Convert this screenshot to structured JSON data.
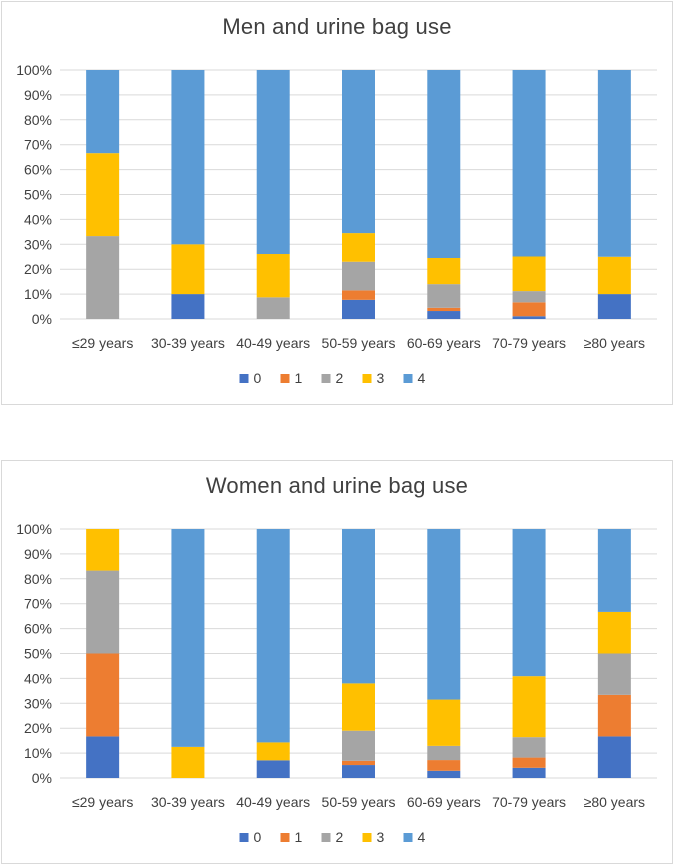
{
  "colors": {
    "0": "#4472C4",
    "1": "#ED7D31",
    "2": "#A5A5A5",
    "3": "#FFC000",
    "4": "#5B9BD5"
  },
  "chart_data": [
    {
      "type": "bar",
      "stacked": true,
      "title": "Men and urine bag use",
      "categories": [
        "≤29 years",
        "30-39 years",
        "40-49 years",
        "50-59 years",
        "60-69 years",
        "70-79 years",
        "≥80 years"
      ],
      "yticks": [
        "0%",
        "10%",
        "20%",
        "30%",
        "40%",
        "50%",
        "60%",
        "70%",
        "80%",
        "90%",
        "100%"
      ],
      "ylim": [
        0,
        100
      ],
      "legend_position": "bottom",
      "series": [
        {
          "name": "0",
          "values": [
            0,
            10,
            0,
            7.7,
            3.2,
            1.1,
            10
          ]
        },
        {
          "name": "1",
          "values": [
            0,
            0,
            0,
            3.8,
            1.3,
            5.6,
            0
          ]
        },
        {
          "name": "2",
          "values": [
            33.3,
            0,
            8.7,
            11.5,
            9.5,
            4.5,
            0
          ]
        },
        {
          "name": "3",
          "values": [
            33.3,
            20,
            17.4,
            11.5,
            10.5,
            13.9,
            15
          ]
        },
        {
          "name": "4",
          "values": [
            33.4,
            70,
            73.9,
            65.5,
            75.5,
            74.9,
            75
          ]
        }
      ]
    },
    {
      "type": "bar",
      "stacked": true,
      "title": "Women and urine bag use",
      "categories": [
        "≤29 years",
        "30-39 years",
        "40-49 years",
        "50-59 years",
        "60-69 years",
        "70-79 years",
        "≥80 years"
      ],
      "yticks": [
        "0%",
        "10%",
        "20%",
        "30%",
        "40%",
        "50%",
        "60%",
        "70%",
        "80%",
        "90%",
        "100%"
      ],
      "ylim": [
        0,
        100
      ],
      "legend_position": "bottom",
      "series": [
        {
          "name": "0",
          "values": [
            16.7,
            0,
            7.1,
            5.2,
            2.9,
            4.1,
            16.7
          ]
        },
        {
          "name": "1",
          "values": [
            33.3,
            0,
            0,
            1.7,
            4.3,
            4.1,
            16.7
          ]
        },
        {
          "name": "2",
          "values": [
            33.3,
            0,
            0,
            12.1,
            5.7,
            8.2,
            16.6
          ]
        },
        {
          "name": "3",
          "values": [
            16.7,
            12.5,
            7.2,
            19,
            18.6,
            24.5,
            16.7
          ]
        },
        {
          "name": "4",
          "values": [
            0,
            87.5,
            85.7,
            62,
            68.5,
            59.1,
            33.3
          ]
        }
      ]
    }
  ]
}
